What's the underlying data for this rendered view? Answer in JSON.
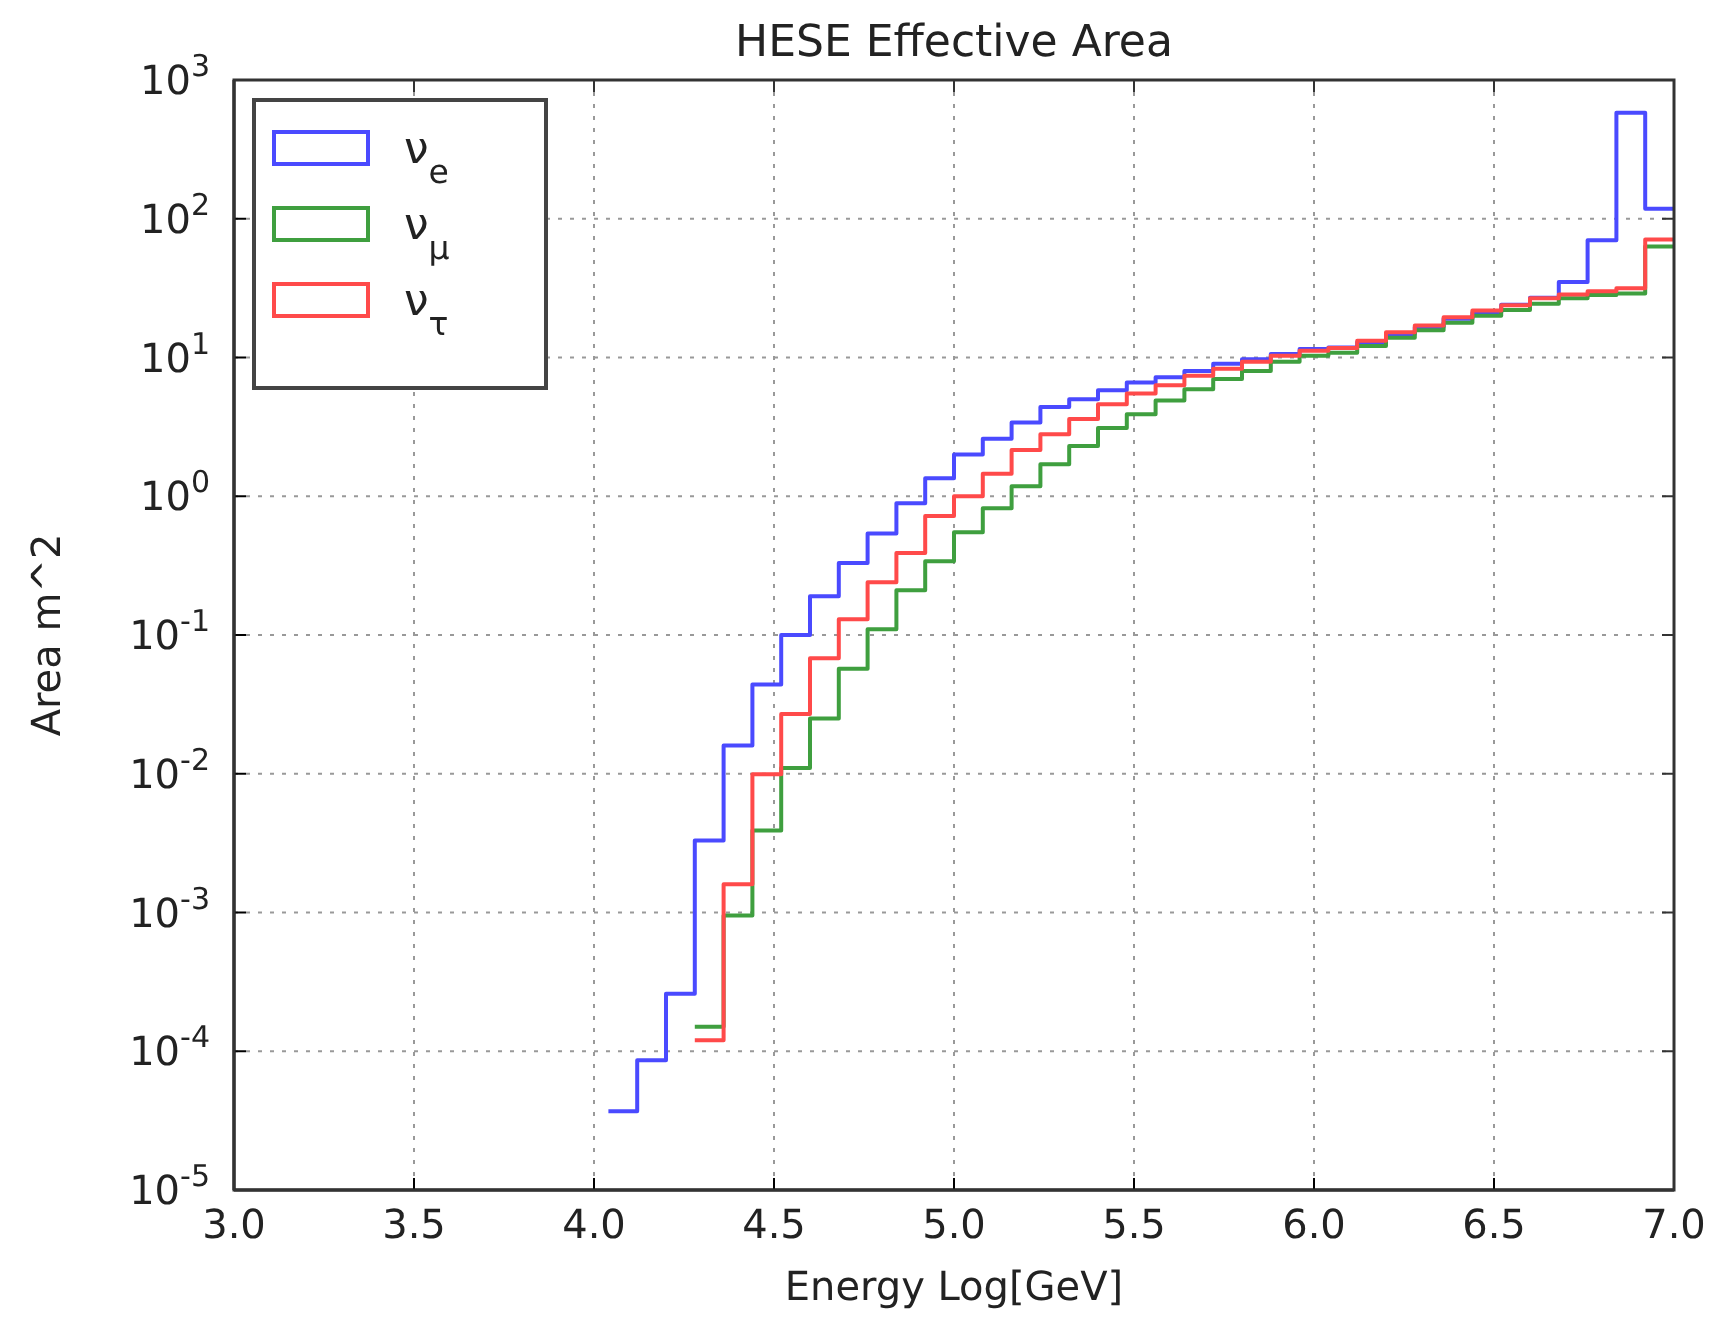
{
  "chart_data": {
    "type": "histogram",
    "title": "HESE Effective Area",
    "xlabel": "Energy Log[GeV]",
    "ylabel": "Area m^2",
    "bins": [
      4.04,
      4.12,
      4.2,
      4.28,
      4.36,
      4.44,
      4.52,
      4.6,
      4.68,
      4.76,
      4.84,
      4.92,
      5.0,
      5.08,
      5.16,
      5.24,
      5.32,
      5.4,
      5.48,
      5.56,
      5.64,
      5.72,
      5.8,
      5.88,
      5.96,
      6.04,
      6.12,
      6.2,
      6.28,
      6.36,
      6.44,
      6.52,
      6.6,
      6.68,
      6.76,
      6.84,
      6.92,
      7.0
    ],
    "series": [
      {
        "name": "ν$_{e}$",
        "color": "#4a4aff",
        "values": [
          3.7e-05,
          8.6e-05,
          0.00026,
          0.0033,
          0.016,
          0.044,
          0.1,
          0.19,
          0.33,
          0.54,
          0.89,
          1.35,
          2.0,
          2.6,
          3.4,
          4.4,
          5.0,
          5.8,
          6.6,
          7.2,
          8.0,
          9.0,
          9.7,
          10.6,
          11.5,
          11.8,
          12.8,
          14.8,
          16.6,
          19,
          21,
          24,
          27,
          35,
          70,
          580,
          118
        ]
      },
      {
        "name": "ν$_{μ}$",
        "color": "#3f9f3f",
        "bins": [
          4.28,
          4.36,
          4.44,
          4.52,
          4.6,
          4.68,
          4.76,
          4.84,
          4.92,
          5.0,
          5.08,
          5.16,
          5.24,
          5.32,
          5.4,
          5.48,
          5.56,
          5.64,
          5.72,
          5.8,
          5.88,
          5.96,
          6.04,
          6.12,
          6.2,
          6.28,
          6.36,
          6.44,
          6.52,
          6.6,
          6.68,
          6.76,
          6.84,
          6.92,
          7.0
        ],
        "values": [
          0.00015,
          0.00095,
          0.0039,
          0.011,
          0.025,
          0.057,
          0.11,
          0.21,
          0.34,
          0.55,
          0.82,
          1.18,
          1.7,
          2.3,
          3.1,
          3.9,
          4.9,
          5.9,
          7.0,
          8.0,
          9.3,
          10.3,
          10.8,
          12.1,
          13.9,
          15.7,
          17.8,
          20,
          22,
          24.4,
          26.7,
          28.2,
          28.9,
          63
        ]
      },
      {
        "name": "ν$_{τ}$",
        "color": "#ff4a4a",
        "bins": [
          4.28,
          4.36,
          4.44,
          4.52,
          4.6,
          4.68,
          4.76,
          4.84,
          4.92,
          5.0,
          5.08,
          5.16,
          5.24,
          5.32,
          5.4,
          5.48,
          5.56,
          5.64,
          5.72,
          5.8,
          5.88,
          5.96,
          6.04,
          6.12,
          6.2,
          6.28,
          6.36,
          6.44,
          6.52,
          6.6,
          6.68,
          6.76,
          6.84,
          6.92,
          7.0
        ],
        "values": [
          0.00012,
          0.0016,
          0.0099,
          0.027,
          0.068,
          0.13,
          0.24,
          0.39,
          0.72,
          1.0,
          1.45,
          2.15,
          2.8,
          3.6,
          4.6,
          5.5,
          6.3,
          7.4,
          8.3,
          9.3,
          10.3,
          11.2,
          11.7,
          13.2,
          15.2,
          17,
          19.5,
          21.8,
          23.8,
          26.7,
          28.5,
          30,
          31.5,
          71
        ]
      }
    ],
    "xlim": [
      3.0,
      7.0
    ],
    "xticks": [
      {
        "value": 3.0,
        "label": "3.0"
      },
      {
        "value": 3.5,
        "label": "3.5"
      },
      {
        "value": 4.0,
        "label": "4.0"
      },
      {
        "value": 4.5,
        "label": "4.5"
      },
      {
        "value": 5.0,
        "label": "5.0"
      },
      {
        "value": 5.5,
        "label": "5.5"
      },
      {
        "value": 6.0,
        "label": "6.0"
      },
      {
        "value": 6.5,
        "label": "6.5"
      },
      {
        "value": 7.0,
        "label": "7.0"
      }
    ],
    "ylim": [
      1e-05,
      1000
    ],
    "yticks": [
      {
        "value": 1e-05,
        "label": "10$^{-5}$"
      },
      {
        "value": 0.0001,
        "label": "10$^{-4}$"
      },
      {
        "value": 0.001,
        "label": "10$^{-3}$"
      },
      {
        "value": 0.01,
        "label": "10$^{-2}$"
      },
      {
        "value": 0.1,
        "label": "10$^{-1}$"
      },
      {
        "value": 1,
        "label": "10$^{0}$"
      },
      {
        "value": 10,
        "label": "10$^{1}$"
      },
      {
        "value": 100,
        "label": "10$^{2}$"
      },
      {
        "value": 1000,
        "label": "10$^{3}$"
      }
    ],
    "log": "y",
    "grid": true,
    "legend": "top left"
  }
}
